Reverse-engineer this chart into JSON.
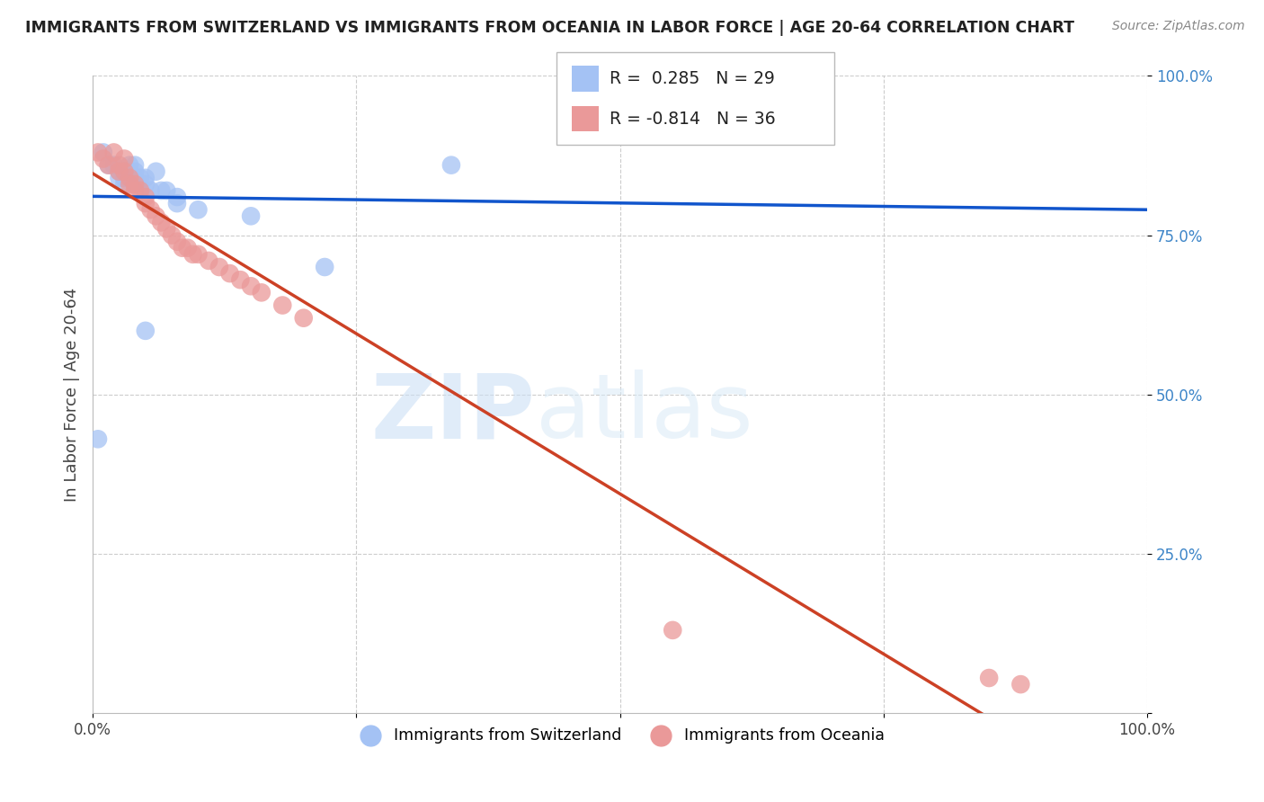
{
  "title": "IMMIGRANTS FROM SWITZERLAND VS IMMIGRANTS FROM OCEANIA IN LABOR FORCE | AGE 20-64 CORRELATION CHART",
  "source": "Source: ZipAtlas.com",
  "ylabel": "In Labor Force | Age 20-64",
  "watermark_zip": "ZIP",
  "watermark_atlas": "atlas",
  "xlim": [
    0.0,
    1.0
  ],
  "ylim": [
    0.0,
    1.0
  ],
  "swiss_R": 0.285,
  "swiss_N": 29,
  "oceania_R": -0.814,
  "oceania_N": 36,
  "swiss_color": "#a4c2f4",
  "oceania_color": "#ea9999",
  "swiss_line_color": "#1155cc",
  "oceania_line_color": "#cc4125",
  "legend_label_swiss": "Immigrants from Switzerland",
  "legend_label_oceania": "Immigrants from Oceania",
  "swiss_x": [
    0.005,
    0.01,
    0.015,
    0.02,
    0.025,
    0.025,
    0.03,
    0.03,
    0.03,
    0.035,
    0.035,
    0.04,
    0.04,
    0.04,
    0.04,
    0.045,
    0.05,
    0.05,
    0.055,
    0.06,
    0.065,
    0.07,
    0.08,
    0.08,
    0.1,
    0.15,
    0.22,
    0.34,
    0.05
  ],
  "swiss_y": [
    0.43,
    0.88,
    0.86,
    0.86,
    0.85,
    0.84,
    0.84,
    0.84,
    0.83,
    0.86,
    0.85,
    0.85,
    0.86,
    0.84,
    0.83,
    0.84,
    0.84,
    0.83,
    0.82,
    0.85,
    0.82,
    0.82,
    0.8,
    0.81,
    0.79,
    0.78,
    0.7,
    0.86,
    0.6
  ],
  "oceania_x": [
    0.005,
    0.01,
    0.015,
    0.02,
    0.025,
    0.025,
    0.03,
    0.03,
    0.035,
    0.035,
    0.04,
    0.04,
    0.045,
    0.05,
    0.05,
    0.055,
    0.06,
    0.065,
    0.07,
    0.075,
    0.08,
    0.085,
    0.09,
    0.095,
    0.1,
    0.11,
    0.12,
    0.13,
    0.14,
    0.15,
    0.16,
    0.18,
    0.2,
    0.55,
    0.85,
    0.88
  ],
  "oceania_y": [
    0.88,
    0.87,
    0.86,
    0.88,
    0.85,
    0.86,
    0.87,
    0.85,
    0.84,
    0.83,
    0.82,
    0.83,
    0.82,
    0.81,
    0.8,
    0.79,
    0.78,
    0.77,
    0.76,
    0.75,
    0.74,
    0.73,
    0.73,
    0.72,
    0.72,
    0.71,
    0.7,
    0.69,
    0.68,
    0.67,
    0.66,
    0.64,
    0.62,
    0.13,
    0.055,
    0.045
  ],
  "background_color": "#ffffff",
  "grid_color": "#cccccc"
}
